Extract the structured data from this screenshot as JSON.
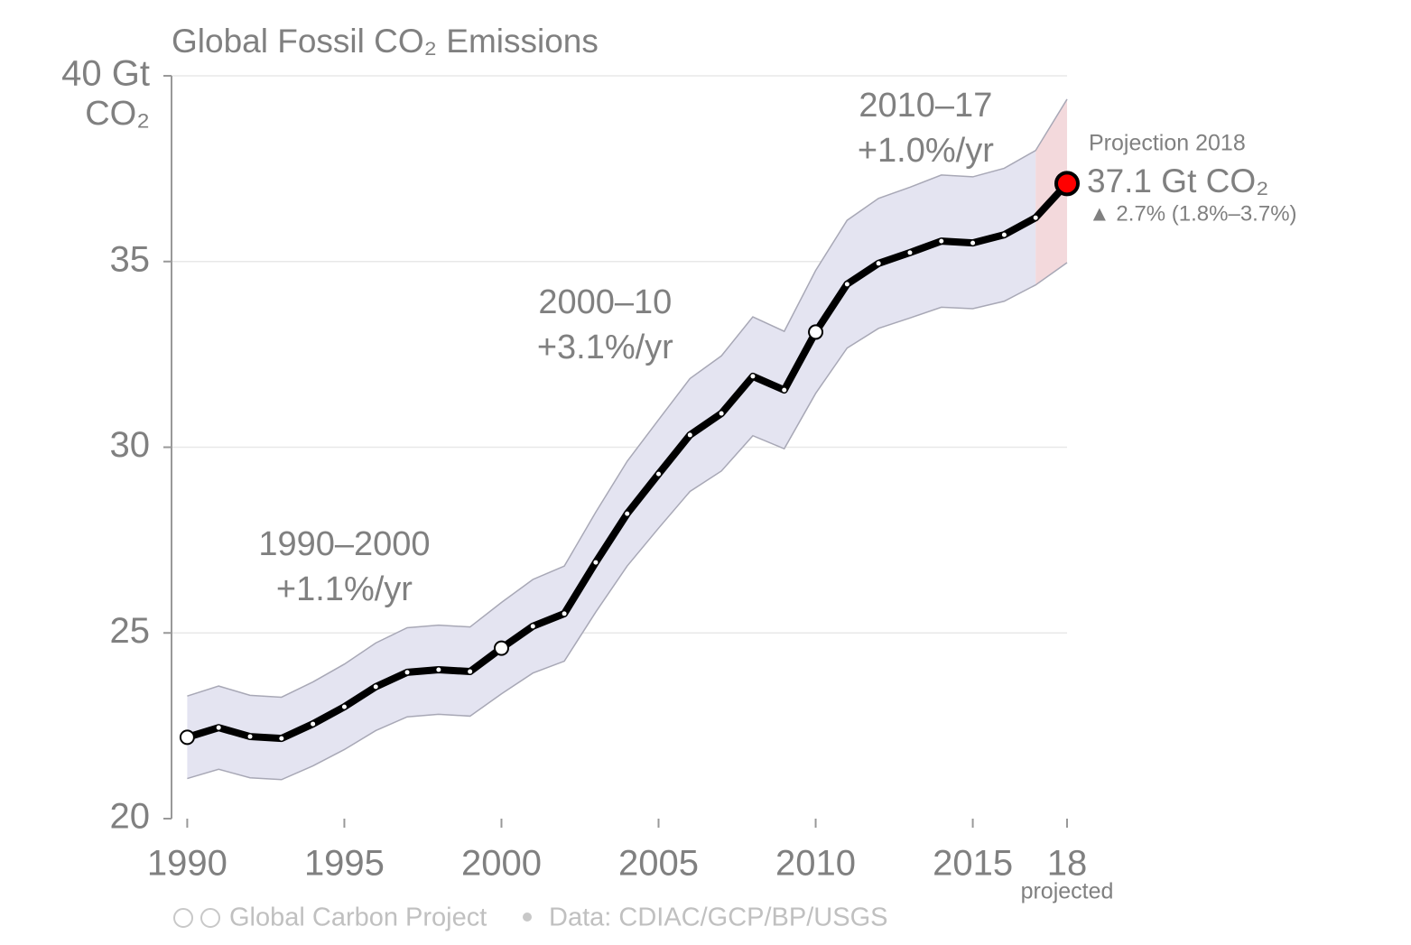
{
  "chart_data": {
    "type": "line",
    "title": "Global Fossil CO₂ Emissions",
    "y_unit": "CO₂",
    "x": [
      1990,
      1991,
      1992,
      1993,
      1994,
      1995,
      1996,
      1997,
      1998,
      1999,
      2000,
      2001,
      2002,
      2003,
      2004,
      2005,
      2006,
      2007,
      2008,
      2009,
      2010,
      2011,
      2012,
      2013,
      2014,
      2015,
      2016,
      2017,
      2018
    ],
    "values": [
      22.19,
      22.45,
      22.21,
      22.16,
      22.55,
      23.01,
      23.55,
      23.94,
      24.01,
      23.96,
      24.59,
      25.18,
      25.52,
      26.9,
      28.21,
      29.28,
      30.33,
      30.91,
      31.91,
      31.54,
      33.1,
      34.39,
      34.95,
      35.24,
      35.55,
      35.5,
      35.72,
      36.18,
      37.1
    ],
    "color": "#000000",
    "band": {
      "upper": [
        23.3,
        23.57,
        23.32,
        23.27,
        23.68,
        24.16,
        24.73,
        25.14,
        25.21,
        25.16,
        25.82,
        26.44,
        26.8,
        28.25,
        29.62,
        30.74,
        31.85,
        32.46,
        33.51,
        33.12,
        34.76,
        36.11,
        36.7,
        37.0,
        37.33,
        37.28,
        37.51,
        37.99,
        39.37
      ],
      "lower": [
        21.08,
        21.33,
        21.1,
        21.05,
        21.42,
        21.86,
        22.37,
        22.74,
        22.81,
        22.76,
        23.36,
        23.92,
        24.24,
        25.56,
        26.8,
        27.82,
        28.81,
        29.36,
        30.31,
        29.96,
        31.45,
        32.67,
        33.2,
        33.48,
        33.77,
        33.73,
        33.93,
        34.37,
        34.97
      ],
      "color": "#e4e4f1",
      "projection_color": "#f3d9dc"
    },
    "xlim": [
      1989.5,
      2018
    ],
    "ylim": [
      20,
      40
    ],
    "xticks": [
      1990,
      1995,
      2000,
      2005,
      2010,
      2015,
      {
        "value": 2018,
        "label": "18"
      }
    ],
    "x_projected_label": "projected",
    "yticks": [
      20,
      25,
      30,
      35,
      {
        "value": 40,
        "label": "40 Gt"
      }
    ],
    "grid": true,
    "annotations": [
      {
        "x": 1995,
        "period": "1990–2000",
        "rate": "+1.1%/yr",
        "marker_x": 1990
      },
      {
        "x": 2003.3,
        "period": "2000–10",
        "rate": "+3.1%/yr",
        "marker_x": 2000
      },
      {
        "x": 2013.5,
        "period": "2010–17",
        "rate": "+1.0%/yr",
        "marker_x": 2010
      }
    ],
    "projection": {
      "label": "Projection 2018",
      "value_label": "37.1 Gt CO₂",
      "change": "▲ 2.7% (1.8%–3.7%)",
      "color": "#ff0000"
    },
    "footer": {
      "source": "Global Carbon Project",
      "data": "Data: CDIAC/GCP/BP/USGS"
    }
  }
}
